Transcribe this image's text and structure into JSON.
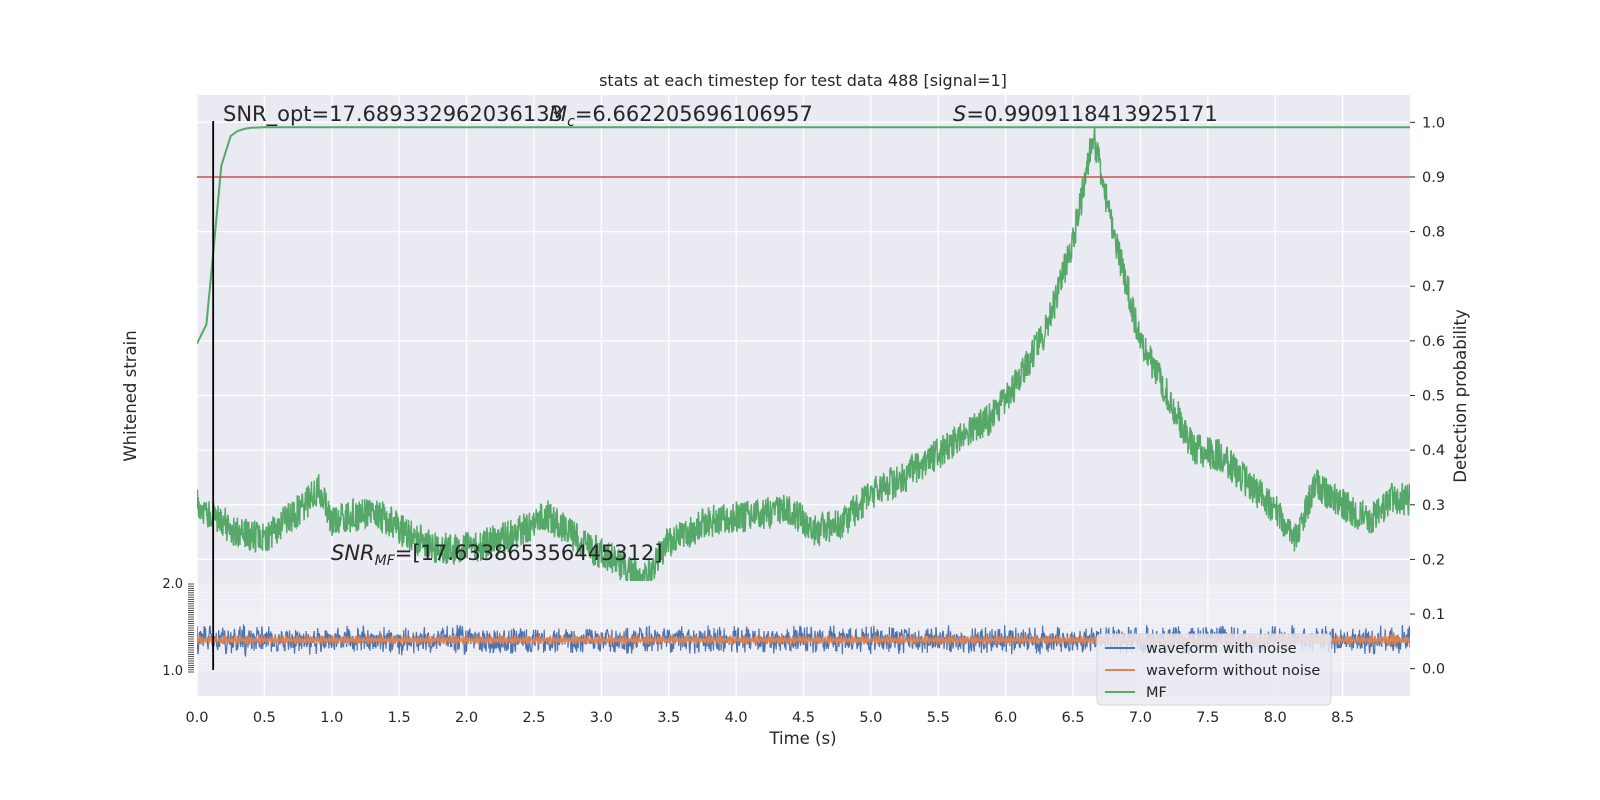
{
  "chart_data": {
    "type": "line",
    "title": "stats at each timestep for test data 488 [signal=1]",
    "xlabel": "Time (s)",
    "ylabel_left": "Whitened strain",
    "ylabel_right": "Detection probability",
    "xlim": [
      0.0,
      9.0
    ],
    "xticks": [
      "0.0",
      "0.5",
      "1.0",
      "1.5",
      "2.0",
      "2.5",
      "3.0",
      "3.5",
      "4.0",
      "4.5",
      "5.0",
      "5.5",
      "6.0",
      "6.5",
      "7.0",
      "7.5",
      "8.0",
      "8.5"
    ],
    "ylim_right": [
      -0.05,
      1.05
    ],
    "yticks_right": [
      "0.0",
      "0.1",
      "0.2",
      "0.3",
      "0.4",
      "0.5",
      "0.6",
      "0.7",
      "0.8",
      "0.9",
      "1.0"
    ],
    "strain_ticks_top": "2.0",
    "strain_ticks_bottom": "1.0",
    "grid": true,
    "threshold": 0.9,
    "marker_time": 0.12,
    "annotations": {
      "snr_opt": "SNR_opt=17.689332962036133",
      "mc_value": "=6.662205696106957",
      "s_value": "=0.9909118413925171",
      "snr_mf_value": "=[17.633865356445312]"
    },
    "legend": {
      "placement": "lower-right",
      "entries": [
        {
          "label": "waveform with noise",
          "color": "#4c72b0"
        },
        {
          "label": "waveform without noise",
          "color": "#dd8452"
        },
        {
          "label": "MF",
          "color": "#55a868"
        }
      ]
    },
    "series": [
      {
        "name": "MF",
        "color": "#55a868",
        "x": [
          0.0,
          0.07,
          0.12,
          0.18,
          0.25,
          0.3,
          0.35,
          0.4,
          0.5,
          0.7,
          1.0,
          2.0,
          3.0,
          4.0,
          5.0,
          6.0,
          7.0,
          8.0,
          9.0
        ],
        "y": [
          0.595,
          0.63,
          0.76,
          0.92,
          0.975,
          0.984,
          0.988,
          0.99,
          0.991,
          0.991,
          0.991,
          0.991,
          0.991,
          0.991,
          0.991,
          0.991,
          0.991,
          0.991,
          0.991
        ]
      },
      {
        "name": "Detection probability",
        "color": "#55a868",
        "x": [
          0.0,
          0.3,
          0.5,
          0.8,
          0.9,
          1.0,
          1.3,
          1.6,
          1.8,
          2.0,
          2.3,
          2.6,
          2.9,
          3.1,
          3.3,
          3.5,
          3.8,
          4.1,
          4.4,
          4.6,
          4.8,
          5.0,
          5.3,
          5.6,
          5.9,
          6.1,
          6.3,
          6.5,
          6.65,
          6.8,
          7.0,
          7.2,
          7.4,
          7.6,
          7.8,
          8.0,
          8.15,
          8.3,
          8.5,
          8.7,
          8.85,
          9.0
        ],
        "y": [
          0.3,
          0.25,
          0.24,
          0.3,
          0.33,
          0.27,
          0.29,
          0.24,
          0.22,
          0.22,
          0.24,
          0.28,
          0.22,
          0.2,
          0.16,
          0.23,
          0.27,
          0.28,
          0.29,
          0.25,
          0.27,
          0.32,
          0.36,
          0.41,
          0.46,
          0.53,
          0.62,
          0.78,
          0.975,
          0.8,
          0.6,
          0.5,
          0.4,
          0.39,
          0.34,
          0.29,
          0.24,
          0.34,
          0.3,
          0.27,
          0.31,
          0.31
        ]
      }
    ]
  }
}
